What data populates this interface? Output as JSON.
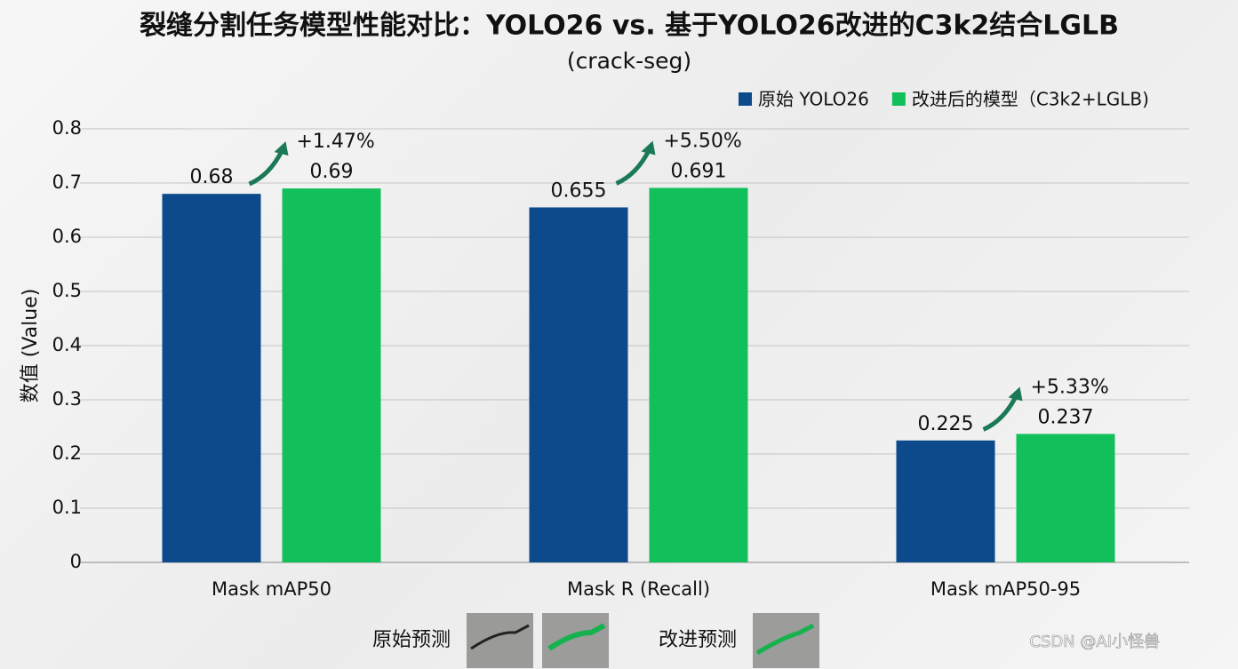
{
  "chart_data": {
    "type": "bar",
    "title": "裂缝分割任务模型性能对比：YOLO26 vs. 基于YOLO26改进的C3k2结合LGLB",
    "subtitle": "(crack-seg)",
    "y_label": "数值 (Value)",
    "categories": [
      "Mask mAP50",
      "Mask R (Recall)",
      "Mask mAP50-95"
    ],
    "series": [
      {
        "name": "原始 YOLO26",
        "color": "#0c4a8b",
        "values": [
          0.68,
          0.655,
          0.225
        ]
      },
      {
        "name": "改进后的模型（C3k2+LGLB)",
        "color": "#12c05b",
        "values": [
          0.69,
          0.691,
          0.237
        ]
      }
    ],
    "annotations": [
      "+1.47%",
      "+5.50%",
      "+5.33%"
    ],
    "ylim": [
      0,
      0.8
    ],
    "yticks": [
      0,
      0.1,
      0.2,
      0.3,
      0.4,
      0.5,
      0.6,
      0.7,
      0.8
    ],
    "grid": true,
    "legend": "top-right"
  },
  "footer": {
    "original_label": "原始预测",
    "improved_label": "改进预测",
    "watermark": "CSDN @AI小怪兽"
  }
}
